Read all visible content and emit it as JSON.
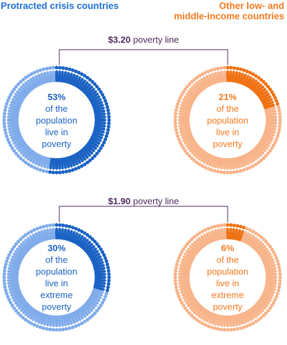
{
  "groups": {
    "left_title_line1": "Protracted crisis countries",
    "right_title_line1": "Other low- and",
    "right_title_line2": "middle-income countries"
  },
  "colors": {
    "blue_dark": "#1a62c4",
    "blue_light": "#80acea",
    "orange_dark": "#f07214",
    "orange_light": "#f8b48a",
    "connector": "#4b2a5e"
  },
  "poverty_lines": [
    {
      "amount": "$3.20",
      "label": "poverty line"
    },
    {
      "amount": "$1.90",
      "label": "poverty line"
    }
  ],
  "chart_data": {
    "type": "waffle-ring",
    "panels": [
      {
        "group": "Protracted crisis countries",
        "poverty_line": "$3.20 poverty line",
        "value_pct": 53,
        "pct_label": "53%",
        "text_lines": [
          "of the",
          "population",
          "live in",
          "poverty"
        ]
      },
      {
        "group": "Other low- and middle-income countries",
        "poverty_line": "$3.20 poverty line",
        "value_pct": 21,
        "pct_label": "21%",
        "text_lines": [
          "of the",
          "population",
          "live in",
          "poverty"
        ]
      },
      {
        "group": "Protracted crisis countries",
        "poverty_line": "$1.90 poverty line",
        "value_pct": 30,
        "pct_label": "30%",
        "text_lines": [
          "of the",
          "population",
          "live in",
          "extreme",
          "poverty"
        ]
      },
      {
        "group": "Other low- and middle-income countries",
        "poverty_line": "$1.90 poverty line",
        "value_pct": 6,
        "pct_label": "6%",
        "text_lines": [
          "of the",
          "population",
          "live in",
          "extreme",
          "poverty"
        ]
      }
    ]
  }
}
